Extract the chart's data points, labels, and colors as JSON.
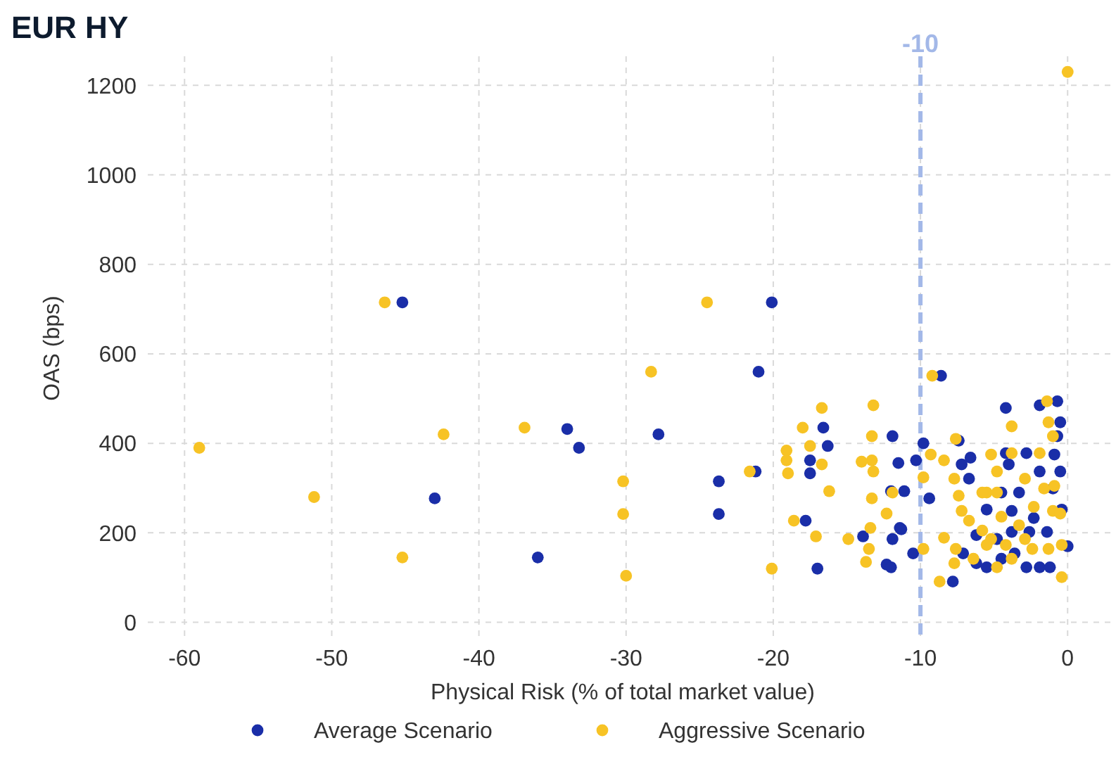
{
  "chart_data": {
    "type": "scatter",
    "title": "EUR HY",
    "xlabel": "Physical Risk (% of total market value)",
    "ylabel": "OAS (bps)",
    "xlim": [
      -62.5,
      3
    ],
    "ylim": [
      -40,
      1265
    ],
    "xticks": [
      -60,
      -50,
      -40,
      -30,
      -20,
      -10,
      0
    ],
    "yticks": [
      0,
      200,
      400,
      600,
      800,
      1000,
      1200
    ],
    "grid": true,
    "legend": "bottom",
    "marker": "circle",
    "ref_lines": [
      {
        "axis": "x",
        "value": -10,
        "label": "-10",
        "color": "#a3b8e8",
        "line_style": "dashed"
      }
    ],
    "series": [
      {
        "name": "Average Scenario",
        "color": "#1a2ea8",
        "x": [
          -45.2,
          -43.0,
          -36.0,
          -34.0,
          -33.2,
          -27.8,
          -23.7,
          -23.7,
          -20.1,
          -21.0,
          -21.2,
          -16.6,
          -16.3,
          -17.5,
          -17.5,
          -17.8,
          -17.0,
          -13.9,
          -11.9,
          -11.5,
          -11.9,
          -12.3,
          -11.4,
          -12.0,
          -8.6,
          -10.3,
          -9.8,
          -9.4,
          -11.1,
          -11.3,
          -10.5,
          -7.8,
          -4.2,
          -1.9,
          -0.7,
          -0.5,
          -0.7,
          -4.2,
          -2.8,
          -0.9,
          -4.0,
          -0.5,
          -6.6,
          -7.2,
          -6.7,
          -7.4,
          -1.9,
          -1.0,
          -3.3,
          -4.5,
          -5.5,
          -3.8,
          -2.3,
          -0.4,
          -1.4,
          -2.6,
          -3.8,
          -4.8,
          -6.2,
          -6.2,
          -5.5,
          -2.8,
          -1.9,
          -1.2,
          -4.5,
          -3.6,
          0.0,
          -7.1,
          -12.0
        ],
        "values": [
          715,
          277,
          145,
          432,
          390,
          420,
          315,
          242,
          715,
          560,
          337,
          435,
          394,
          333,
          362,
          227,
          120,
          192,
          416,
          356,
          186,
          129,
          211,
          293,
          551,
          362,
          400,
          277,
          293,
          208,
          154,
          91,
          479,
          485,
          494,
          447,
          416,
          378,
          378,
          375,
          353,
          337,
          368,
          353,
          321,
          406,
          337,
          299,
          290,
          290,
          252,
          249,
          233,
          252,
          202,
          202,
          202,
          186,
          195,
          132,
          123,
          123,
          123,
          123,
          142,
          154,
          170,
          154,
          123
        ]
      },
      {
        "name": "Aggressive Scenario",
        "color": "#f7c325",
        "x": [
          -59.0,
          -51.2,
          -46.4,
          -45.2,
          -42.4,
          -36.9,
          -30.2,
          -30.2,
          -30.0,
          -28.3,
          -24.5,
          -20.1,
          -21.6,
          -16.7,
          -18.0,
          -19.1,
          -19.1,
          -19.0,
          -17.5,
          -16.7,
          -16.2,
          -18.6,
          -17.1,
          -14.9,
          -13.2,
          -13.3,
          -13.3,
          -13.2,
          -14.0,
          -13.3,
          -12.3,
          -13.4,
          -13.5,
          -13.7,
          -11.9,
          -9.2,
          -8.7,
          -9.3,
          -9.8,
          -8.4,
          -7.6,
          -7.7,
          -7.2,
          -8.4,
          -9.8,
          -7.6,
          -7.7,
          -5.5,
          -3.8,
          -3.8,
          -1.4,
          -1.3,
          -1.0,
          -1.9,
          -2.9,
          -1.6,
          -0.9,
          -4.8,
          -5.2,
          -6.7,
          -5.8,
          -4.5,
          -3.3,
          -2.3,
          -1.0,
          -0.5,
          -0.4,
          -0.4,
          -5.2,
          -4.2,
          -2.9,
          -4.8,
          -3.8,
          -2.4,
          -6.4,
          -5.5,
          -5.8,
          -4.8,
          -1.3,
          -7.4,
          0.0
        ],
        "values": [
          390,
          280,
          715,
          145,
          420,
          435,
          315,
          242,
          104,
          560,
          715,
          120,
          337,
          479,
          435,
          384,
          362,
          333,
          394,
          353,
          293,
          227,
          192,
          186,
          485,
          416,
          362,
          337,
          359,
          277,
          243,
          211,
          164,
          135,
          290,
          551,
          91,
          375,
          324,
          362,
          410,
          321,
          249,
          189,
          164,
          164,
          132,
          290,
          378,
          438,
          494,
          447,
          416,
          378,
          321,
          299,
          305,
          337,
          375,
          227,
          205,
          236,
          217,
          258,
          249,
          243,
          173,
          101,
          186,
          173,
          186,
          123,
          142,
          164,
          142,
          173,
          290,
          290,
          164,
          283,
          1230
        ]
      }
    ]
  }
}
